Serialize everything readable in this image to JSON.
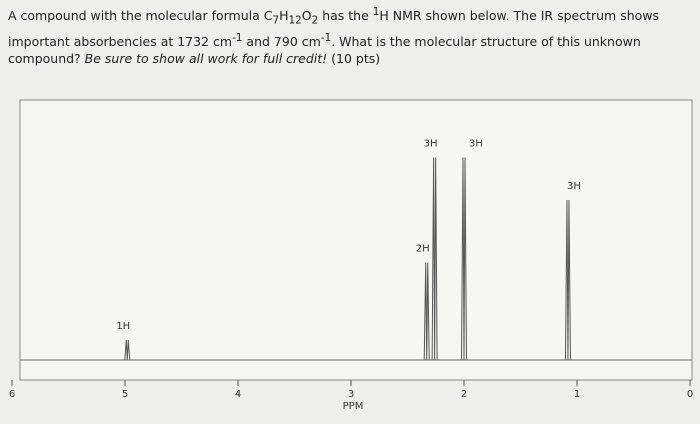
{
  "question": [
    "A compound with the molecular formula C",
    "7",
    "H",
    "12",
    "O",
    "2",
    " has the ",
    "1",
    "H NMR shown below.  The IR spectrum shows important absorbencies at 1732 cm",
    "-1",
    " and 790 cm",
    "-1",
    ".  What is the molecular structure of this unknown compound? ",
    "Be sure to show all work for full credit!",
    " (10 pts)"
  ],
  "chart_data": {
    "type": "nmr",
    "xlabel": "PPM",
    "xlim": [
      6,
      0
    ],
    "xticks": [
      0,
      1,
      2,
      3,
      4,
      5,
      6
    ],
    "ylim": [
      0,
      100
    ],
    "x": [
      4.98,
      2.33,
      2.26,
      2.0,
      1.08
    ],
    "values": [
      8,
      39,
      81,
      81,
      64
    ],
    "integrations": [
      "1H",
      "2H",
      "3H",
      "3H",
      "3H"
    ],
    "color": "#555555"
  }
}
